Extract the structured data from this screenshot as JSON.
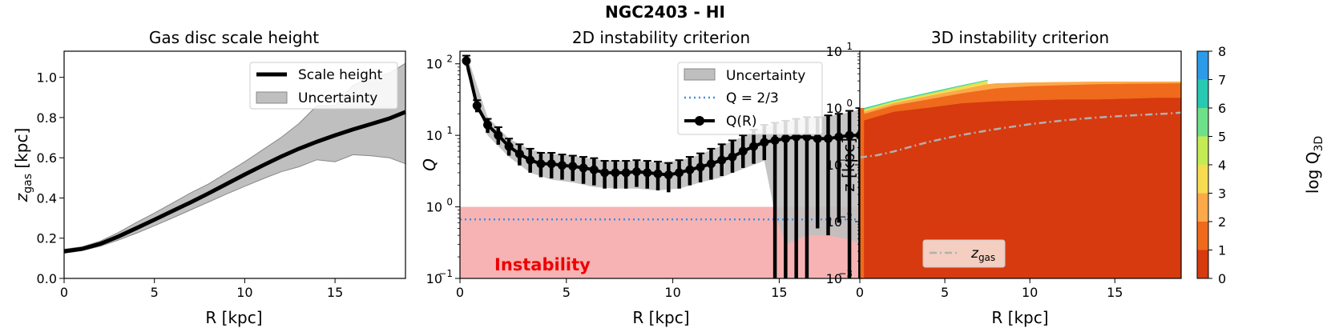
{
  "suptitle": "NGC2403 - HI",
  "chart_data": [
    {
      "type": "line",
      "title": "Gas disc scale height",
      "xlabel": "R [kpc]",
      "ylabel": "z_gas [kpc]",
      "ylabel_main": "z",
      "ylabel_sub": "gas",
      "ylabel_unit": " [kpc]",
      "xlim": [
        0,
        18.9
      ],
      "ylim": [
        0.0,
        1.13
      ],
      "xticks": [
        0,
        5,
        10,
        15
      ],
      "xtick_labels": [
        "0",
        "5",
        "10",
        "15"
      ],
      "yticks": [
        0.0,
        0.2,
        0.4,
        0.6,
        0.8,
        1.0
      ],
      "ytick_labels": [
        "0.0",
        "0.2",
        "0.4",
        "0.6",
        "0.8",
        "1.0"
      ],
      "legend": {
        "position": "top-right",
        "entries": [
          "Scale height",
          "Uncertainty"
        ]
      },
      "series": [
        {
          "name": "Scale height",
          "x": [
            0,
            1,
            2,
            3,
            4,
            5,
            6,
            7,
            8,
            9,
            10,
            11,
            12,
            13,
            14,
            15,
            16,
            17,
            18,
            18.9
          ],
          "values": [
            0.135,
            0.147,
            0.172,
            0.208,
            0.25,
            0.292,
            0.335,
            0.378,
            0.423,
            0.47,
            0.517,
            0.562,
            0.605,
            0.645,
            0.68,
            0.712,
            0.741,
            0.768,
            0.795,
            0.828
          ]
        },
        {
          "name": "Uncertainty",
          "kind": "band",
          "x": [
            0,
            1,
            2,
            3,
            4,
            5,
            6,
            7,
            8,
            9,
            10,
            11,
            12,
            13,
            14,
            15,
            16,
            17,
            18,
            18.9
          ],
          "lower": [
            0.125,
            0.138,
            0.16,
            0.19,
            0.225,
            0.262,
            0.3,
            0.34,
            0.38,
            0.42,
            0.458,
            0.495,
            0.53,
            0.555,
            0.59,
            0.58,
            0.615,
            0.61,
            0.6,
            0.57
          ],
          "upper": [
            0.145,
            0.157,
            0.185,
            0.228,
            0.278,
            0.325,
            0.375,
            0.425,
            0.47,
            0.525,
            0.58,
            0.64,
            0.7,
            0.77,
            0.86,
            0.86,
            0.96,
            1.0,
            1.02,
            1.07
          ]
        }
      ]
    },
    {
      "type": "line",
      "title": "2D instability criterion",
      "xlabel": "R [kpc]",
      "ylabel": "Q",
      "yscale": "log",
      "xlim": [
        0,
        18.9
      ],
      "ylim": [
        0.1,
        150
      ],
      "xticks": [
        0,
        5,
        10,
        15
      ],
      "xtick_labels": [
        "0",
        "5",
        "10",
        "15"
      ],
      "yticks": [
        0.1,
        1,
        10,
        100
      ],
      "ytick_base": "10",
      "ytick_exps": [
        "−1",
        "0",
        "1",
        "2"
      ],
      "annotation": "Instability",
      "instability_region": [
        0.1,
        1.0
      ],
      "threshold": {
        "name": "Q = 2/3",
        "value": 0.667
      },
      "legend": {
        "position": "top-right",
        "entries": [
          "Uncertainty",
          "Q = 2/3",
          "Q(R)"
        ]
      },
      "series": [
        {
          "name": "Q(R)",
          "x": [
            0.3,
            0.8,
            1.3,
            1.8,
            2.3,
            2.8,
            3.3,
            3.8,
            4.3,
            4.8,
            5.3,
            5.8,
            6.3,
            6.8,
            7.3,
            7.8,
            8.3,
            8.8,
            9.3,
            9.8,
            10.3,
            10.8,
            11.3,
            11.8,
            12.3,
            12.8,
            13.3,
            13.8,
            14.3,
            14.8,
            15.3,
            15.8,
            16.3,
            16.8,
            17.3,
            17.8,
            18.3,
            18.8
          ],
          "values": [
            110,
            26,
            14,
            10,
            7,
            5.5,
            4.5,
            4.0,
            4.0,
            3.8,
            3.7,
            3.5,
            3.3,
            3.0,
            3.0,
            3.0,
            3.1,
            3.0,
            2.9,
            2.8,
            3.0,
            3.3,
            3.6,
            4.0,
            4.5,
            5.0,
            6.0,
            7.0,
            8.0,
            8.5,
            9.0,
            9.5,
            9.5,
            9.0,
            9.0,
            9.5,
            10.0,
            10.0
          ],
          "err_low": [
            95,
            21,
            10.8,
            7.4,
            5.2,
            3.8,
            3.0,
            2.6,
            2.5,
            2.4,
            2.3,
            2.1,
            2.0,
            1.8,
            1.8,
            1.8,
            1.9,
            1.8,
            1.7,
            1.6,
            1.8,
            2.0,
            2.2,
            2.4,
            2.7,
            3.0,
            3.5,
            4.0,
            4.5,
            0.05,
            0.06,
            0.06,
            0.08,
            0.5,
            0.4,
            0.6,
            0.06,
            0.06
          ],
          "err_high": [
            130,
            31,
            17,
            13,
            9,
            7.5,
            6.5,
            5.7,
            5.7,
            5.4,
            5.2,
            5.0,
            4.8,
            4.4,
            4.4,
            4.4,
            4.5,
            4.4,
            4.3,
            4.1,
            4.5,
            5.0,
            5.6,
            6.5,
            7.5,
            8.5,
            10,
            12,
            14,
            15,
            16,
            17,
            18,
            18,
            19,
            20,
            22,
            24
          ]
        },
        {
          "name": "Uncertainty",
          "kind": "band",
          "x": [
            0.3,
            1.3,
            2.3,
            3.3,
            4.3,
            5.3,
            6.3,
            7.3,
            8.3,
            9.3,
            10.3,
            11.3,
            12.3,
            13.3,
            14.3,
            14.8,
            15.3,
            16.3,
            17.3,
            18.3,
            18.8
          ],
          "lower": [
            80,
            10,
            5,
            3,
            2.4,
            2.2,
            1.9,
            1.8,
            1.8,
            1.7,
            1.8,
            2.2,
            2.6,
            3.4,
            4.4,
            0.8,
            0.3,
            0.4,
            0.4,
            0.35,
            0.3
          ],
          "upper": [
            140,
            18,
            9,
            6.3,
            5.5,
            5.2,
            4.6,
            4.4,
            4.4,
            4.2,
            4.4,
            5.4,
            7.2,
            9.6,
            13,
            14.5,
            15.5,
            17.5,
            18.5,
            21,
            23
          ]
        }
      ]
    },
    {
      "type": "heatmap",
      "title": "3D instability criterion",
      "xlabel": "R [kpc]",
      "ylabel": "z [kpc]",
      "yscale": "log",
      "xlim": [
        0,
        18.9
      ],
      "ylim": [
        0.001,
        10
      ],
      "xticks": [
        0,
        5,
        10,
        15
      ],
      "xtick_labels": [
        "0",
        "5",
        "10",
        "15"
      ],
      "yticks": [
        0.001,
        0.01,
        0.1,
        1,
        10
      ],
      "ytick_base": "10",
      "ytick_exps": [
        "−3",
        "−2",
        "−1",
        "0",
        "1"
      ],
      "colorbar": {
        "label": "log Q_3D",
        "label_main": "log Q",
        "label_sub": "3D",
        "ticks": [
          0,
          1,
          2,
          3,
          4,
          5,
          6,
          7,
          8
        ],
        "tick_labels": [
          "0",
          "1",
          "2",
          "3",
          "4",
          "5",
          "6",
          "7",
          "8"
        ],
        "levels": [
          0,
          1,
          2,
          3,
          4,
          5,
          6,
          7,
          8
        ],
        "colors": [
          "#d73a0e",
          "#ef6a1c",
          "#fca94a",
          "#f7dc52",
          "#c4eb55",
          "#6fe08a",
          "#27c9b3",
          "#2c9be8"
        ]
      },
      "contour_boundaries": [
        {
          "level": 1,
          "x": [
            0.25,
            2,
            4,
            6,
            8,
            10,
            12,
            14,
            16,
            17.5,
            18.9
          ],
          "z": [
            0.6,
            0.85,
            1.0,
            1.2,
            1.3,
            1.35,
            1.4,
            1.4,
            1.45,
            1.5,
            1.5
          ]
        },
        {
          "level": 2,
          "x": [
            0.25,
            2,
            4,
            6,
            8,
            10,
            12,
            14,
            16,
            18.9
          ],
          "z": [
            0.78,
            1.1,
            1.4,
            1.8,
            2.2,
            2.4,
            2.5,
            2.6,
            2.65,
            2.7
          ]
        },
        {
          "level": 3,
          "x": [
            0.25,
            2,
            4,
            6,
            7.5,
            8,
            10,
            12,
            14,
            16,
            18.9
          ],
          "z": [
            0.85,
            1.2,
            1.6,
            2.1,
            2.6,
            2.7,
            2.8,
            2.85,
            2.9,
            2.9,
            2.9
          ]
        },
        {
          "level": 4,
          "x": [
            0.25,
            2,
            4,
            6,
            7.5
          ],
          "z": [
            0.9,
            1.25,
            1.7,
            2.3,
            2.9
          ]
        },
        {
          "level": 5,
          "x": [
            0.25,
            2,
            4,
            6,
            7.5
          ],
          "z": [
            0.93,
            1.3,
            1.75,
            2.4,
            3.0
          ]
        },
        {
          "level": 6,
          "x": [
            0.25,
            2,
            4,
            6,
            7.5
          ],
          "z": [
            0.96,
            1.33,
            1.8,
            2.45,
            3.05
          ]
        },
        {
          "level": 7,
          "x": [
            0.25,
            2,
            4,
            6,
            7.5
          ],
          "z": [
            0.99,
            1.36,
            1.85,
            2.5,
            3.1
          ]
        }
      ],
      "left_strip": {
        "x_from": 0.0,
        "x_to": 0.25,
        "level": 1,
        "x2_to": 0.45,
        "level2": 0
      },
      "legend": {
        "position": "bottom-left",
        "entries": [
          "z_gas"
        ],
        "main": "z",
        "sub": "gas"
      },
      "series": [
        {
          "name": "z_gas",
          "x": [
            0,
            1,
            2,
            3,
            4,
            5,
            6,
            7,
            8,
            9,
            10,
            11,
            12,
            13,
            14,
            15,
            16,
            17,
            18,
            18.9
          ],
          "values": [
            0.135,
            0.147,
            0.172,
            0.208,
            0.25,
            0.292,
            0.335,
            0.378,
            0.423,
            0.47,
            0.517,
            0.562,
            0.605,
            0.645,
            0.68,
            0.712,
            0.741,
            0.768,
            0.795,
            0.828
          ]
        }
      ]
    }
  ]
}
